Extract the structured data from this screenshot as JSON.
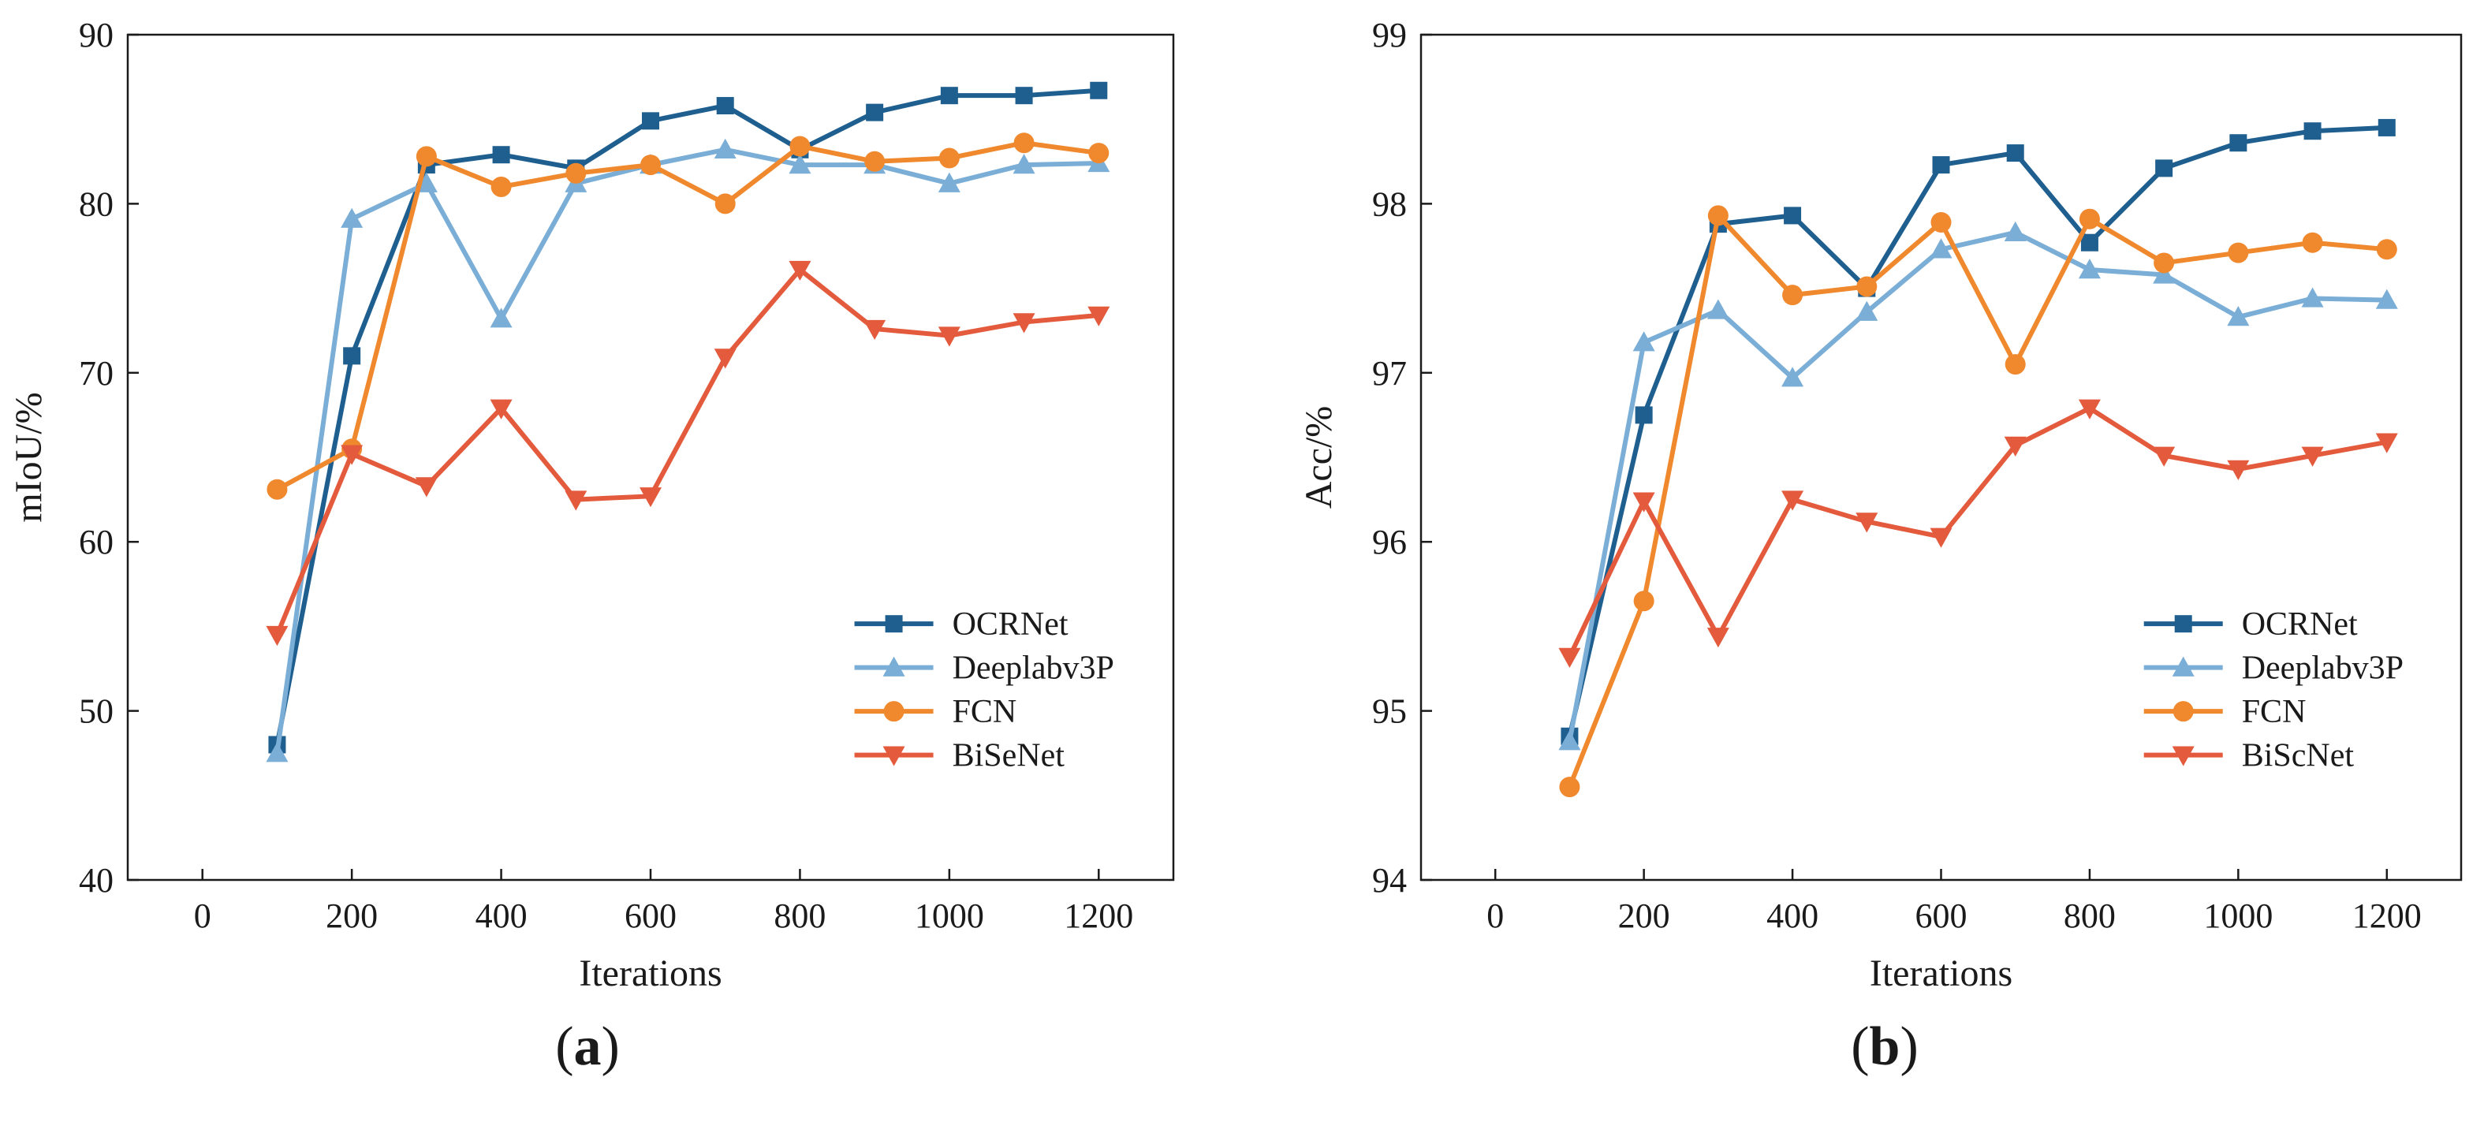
{
  "chart_data": [
    {
      "type": "line",
      "panel_label": "a",
      "title": "",
      "xlabel": "Iterations",
      "ylabel": "mIoU/%",
      "xlim": [
        -100,
        1300
      ],
      "ylim": [
        40,
        90
      ],
      "xticks": [
        0,
        200,
        400,
        600,
        800,
        1000,
        1200
      ],
      "yticks": [
        40,
        50,
        60,
        70,
        80,
        90
      ],
      "x": [
        100,
        200,
        300,
        400,
        500,
        600,
        700,
        800,
        900,
        1000,
        1100,
        1200
      ],
      "legend_position": "lower-right",
      "series": [
        {
          "name": "OCRNet",
          "color": "#1f5f8f",
          "marker": "square",
          "values": [
            48.0,
            71.0,
            82.3,
            82.9,
            82.1,
            84.9,
            85.8,
            83.2,
            85.4,
            86.4,
            86.4,
            86.7
          ]
        },
        {
          "name": "Deeplabv3P",
          "color": "#7aaed6",
          "marker": "triangle-up",
          "values": [
            47.5,
            79.1,
            81.2,
            73.2,
            81.2,
            82.3,
            83.2,
            82.3,
            82.3,
            81.2,
            82.3,
            82.4
          ]
        },
        {
          "name": "FCN",
          "color": "#f0882d",
          "marker": "circle",
          "values": [
            63.1,
            65.5,
            82.8,
            81.0,
            81.8,
            82.3,
            80.0,
            83.4,
            82.5,
            82.7,
            83.6,
            83.0
          ]
        },
        {
          "name": "BiSeNet",
          "color": "#e45a3c",
          "marker": "triangle-down",
          "values": [
            54.5,
            65.2,
            63.3,
            67.9,
            62.5,
            62.7,
            70.9,
            76.1,
            72.6,
            72.2,
            73.0,
            73.4
          ]
        }
      ]
    },
    {
      "type": "line",
      "panel_label": "b",
      "title": "",
      "xlabel": "Iterations",
      "ylabel": "Acc/%",
      "xlim": [
        -100,
        1300
      ],
      "ylim": [
        94,
        99
      ],
      "xticks": [
        0,
        200,
        400,
        600,
        800,
        1000,
        1200
      ],
      "yticks": [
        94,
        95,
        96,
        97,
        98,
        99
      ],
      "x": [
        100,
        200,
        300,
        400,
        500,
        600,
        700,
        800,
        900,
        1000,
        1100,
        1200
      ],
      "legend_position": "lower-right",
      "series": [
        {
          "name": "OCRNet",
          "color": "#1f5f8f",
          "marker": "square",
          "values": [
            94.85,
            96.75,
            97.88,
            97.93,
            97.5,
            98.23,
            98.3,
            97.77,
            98.21,
            98.36,
            98.43,
            98.45
          ]
        },
        {
          "name": "Deeplabv3P",
          "color": "#7aaed6",
          "marker": "triangle-up",
          "values": [
            94.82,
            97.18,
            97.37,
            96.97,
            97.36,
            97.73,
            97.83,
            97.61,
            97.58,
            97.33,
            97.44,
            97.43
          ]
        },
        {
          "name": "FCN",
          "color": "#f0882d",
          "marker": "circle",
          "values": [
            94.55,
            95.65,
            97.93,
            97.46,
            97.51,
            97.89,
            97.05,
            97.91,
            97.65,
            97.71,
            97.77,
            97.73
          ]
        },
        {
          "name": "BiScNet",
          "color": "#e45a3c",
          "marker": "triangle-down",
          "values": [
            95.32,
            96.24,
            95.44,
            96.25,
            96.12,
            96.03,
            96.57,
            96.79,
            96.51,
            96.43,
            96.51,
            96.59
          ]
        }
      ]
    }
  ]
}
